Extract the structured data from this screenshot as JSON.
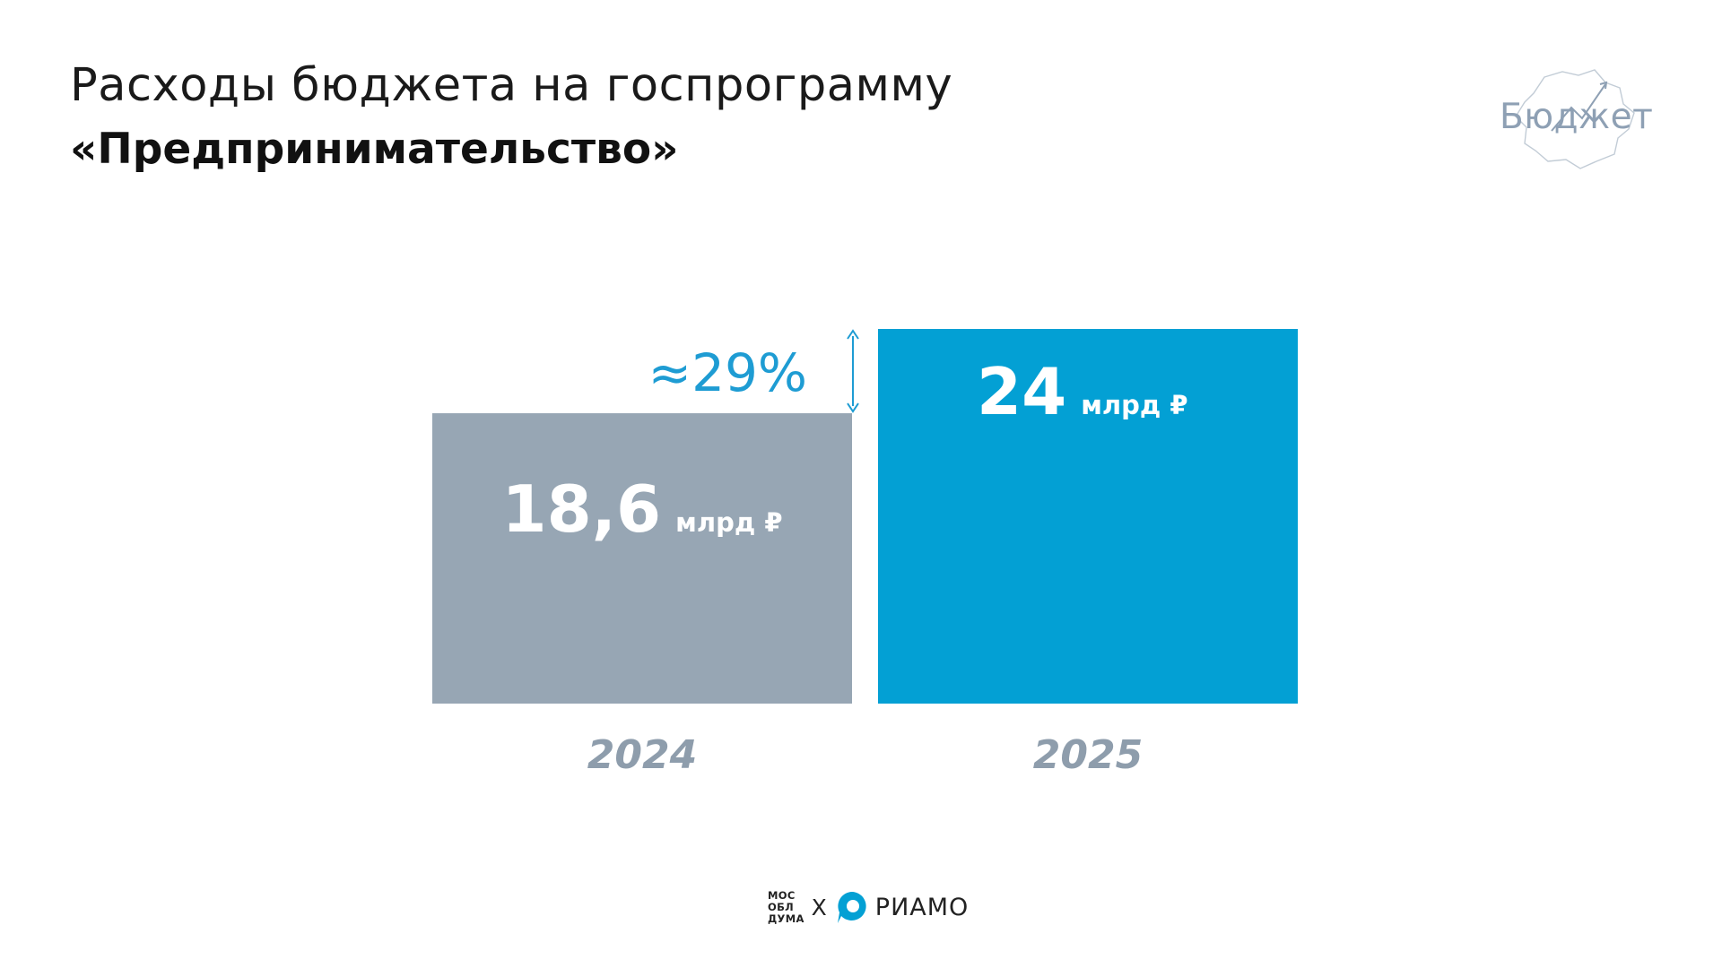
{
  "header": {
    "title_line1": "Расходы бюджета на госпрограмму",
    "title_line2": "«Предпринимательство»"
  },
  "brand": {
    "logo_text": "Бюджет"
  },
  "footer": {
    "partner_left": "МОС\nОБЛ\nДУМА",
    "separator": "X",
    "partner_right": "РИАМО"
  },
  "colors": {
    "bar_2024": "#97a6b4",
    "bar_2025": "#03a0d4",
    "accent": "#1e9cd3",
    "year_label": "#8e9dac"
  },
  "chart_data": {
    "type": "bar",
    "categories": [
      "2024",
      "2025"
    ],
    "values": [
      18.6,
      24
    ],
    "value_labels": [
      "18,6",
      "24"
    ],
    "unit_label": "млрд ₽",
    "change_label": "≈29%",
    "title": "",
    "xlabel": "",
    "ylabel": "",
    "ylim": [
      0,
      24
    ],
    "grid": false,
    "legend": "none"
  }
}
